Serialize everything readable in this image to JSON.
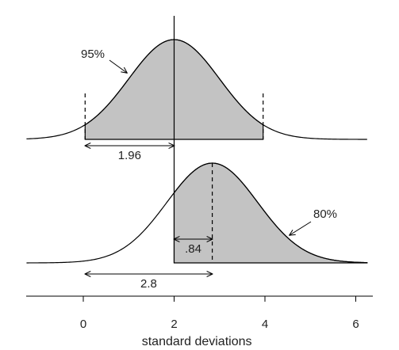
{
  "chart_data": {
    "type": "area",
    "title": "",
    "xlabel": "standard deviations",
    "ylabel": "",
    "xlim": [
      -1.25,
      6.25
    ],
    "xticks": [
      0,
      2,
      4,
      6
    ],
    "tick_labels": [
      "0",
      "2",
      "4",
      "6"
    ],
    "grid": false,
    "panels": [
      {
        "name": "top",
        "mean": 2,
        "sd": 1,
        "shaded_from": 0.04,
        "shaded_to": 3.96,
        "dashed_markers": [
          0.04,
          3.96
        ],
        "area_label": "95%",
        "interval_label": "1.96",
        "interval_from": 0.04,
        "interval_to": 2
      },
      {
        "name": "bottom",
        "mean": 2.84,
        "sd": 1,
        "shaded_from": 2,
        "shaded_to": 6.25,
        "marker_at": 2.84,
        "area_label": "80%",
        "interval_label": ".84",
        "interval_from": 2,
        "interval_to": 2.84,
        "total_label": "2.8",
        "total_from": 0.04,
        "total_to": 2.84
      }
    ]
  }
}
